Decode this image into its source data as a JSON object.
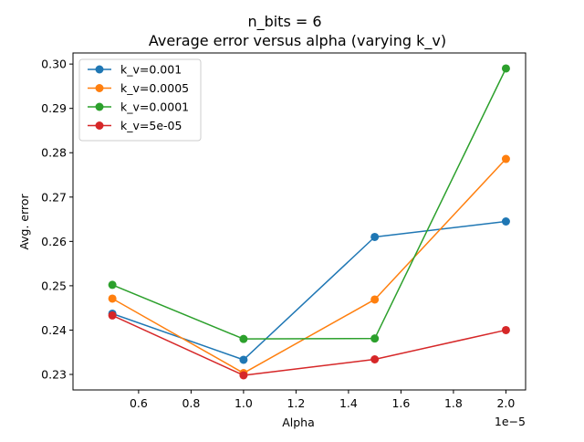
{
  "chart_data": {
    "type": "line",
    "title": "n_bits = 6",
    "subtitle": "Average error versus alpha (varying k_v)",
    "xlabel": "Alpha",
    "ylabel": "Avg. error",
    "x_offset_label": "1e−5",
    "x_scale_factor": 1e-05,
    "x": [
      5e-06,
      1e-05,
      1.5e-05,
      2e-05
    ],
    "xlim": [
      3.5e-06,
      2.075e-05
    ],
    "ylim": [
      0.2265,
      0.3025
    ],
    "x_ticks": [
      0.6,
      0.8,
      1.0,
      1.2,
      1.4,
      1.6,
      1.8,
      2.0
    ],
    "x_tick_labels": [
      "0.6",
      "0.8",
      "1.0",
      "1.2",
      "1.4",
      "1.6",
      "1.8",
      "2.0"
    ],
    "y_ticks": [
      0.23,
      0.24,
      0.25,
      0.26,
      0.27,
      0.28,
      0.29,
      0.3
    ],
    "y_tick_labels": [
      "0.23",
      "0.24",
      "0.25",
      "0.26",
      "0.27",
      "0.28",
      "0.29",
      "0.30"
    ],
    "grid": false,
    "legend_position": "top-left",
    "series": [
      {
        "name": "k_v=0.001",
        "color": "#1f77b4",
        "values": [
          0.2437,
          0.2333,
          0.261,
          0.2645
        ]
      },
      {
        "name": "k_v=0.0005",
        "color": "#ff7f0e",
        "values": [
          0.2471,
          0.2303,
          0.2469,
          0.2786
        ]
      },
      {
        "name": "k_v=0.0001",
        "color": "#2ca02c",
        "values": [
          0.2502,
          0.238,
          0.2381,
          0.299
        ]
      },
      {
        "name": "k_v=5e-05",
        "color": "#d62728",
        "values": [
          0.2433,
          0.2298,
          0.2334,
          0.24
        ]
      }
    ]
  }
}
